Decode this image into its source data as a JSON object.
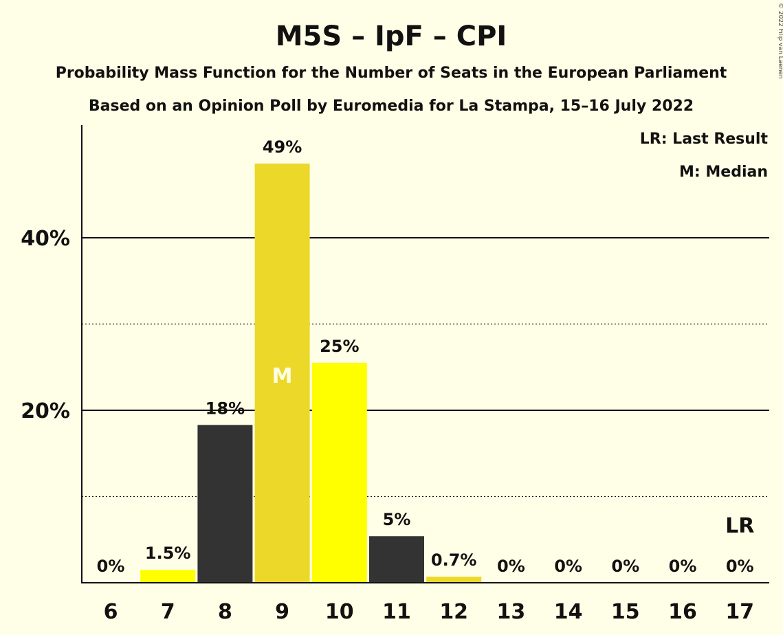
{
  "header": {
    "title": "M5S – IpF – CPI",
    "subtitle1": "Probability Mass Function for the Number of Seats in the European Parliament",
    "subtitle2": "Based on an Opinion Poll by Euromedia for La Stampa, 15–16 July 2022"
  },
  "copyright": "© 2022 Filip van Laenen",
  "legend": {
    "last_result": "LR: Last Result",
    "median": "M: Median"
  },
  "chart_data": {
    "type": "bar",
    "categories": [
      "6",
      "7",
      "8",
      "9",
      "10",
      "11",
      "12",
      "13",
      "14",
      "15",
      "16",
      "17"
    ],
    "values": [
      0,
      1.5,
      18.3,
      48.6,
      25.5,
      5.4,
      0.7,
      0,
      0,
      0,
      0,
      0
    ],
    "labels": [
      "0%",
      "1.5%",
      "18%",
      "49%",
      "25%",
      "5%",
      "0.7%",
      "0%",
      "0%",
      "0%",
      "0%",
      "0%"
    ],
    "colors": [
      "#FFFF00",
      "#FFFF00",
      "#333333",
      "#ECD829",
      "#FFFF00",
      "#333333",
      "#ECD829",
      "#FFFF00",
      "#FFFF00",
      "#FFFF00",
      "#FFFF00",
      "#FFFF00"
    ],
    "y_ticks": [
      {
        "value": 20,
        "label": "20%"
      },
      {
        "value": 40,
        "label": "40%"
      }
    ],
    "y_minor_gridlines": [
      10,
      30
    ],
    "ylim": [
      0,
      53
    ],
    "median": {
      "category": "9",
      "marker": "M"
    },
    "last_result": {
      "category": "17",
      "marker": "LR"
    },
    "legend_position": "top-right"
  }
}
